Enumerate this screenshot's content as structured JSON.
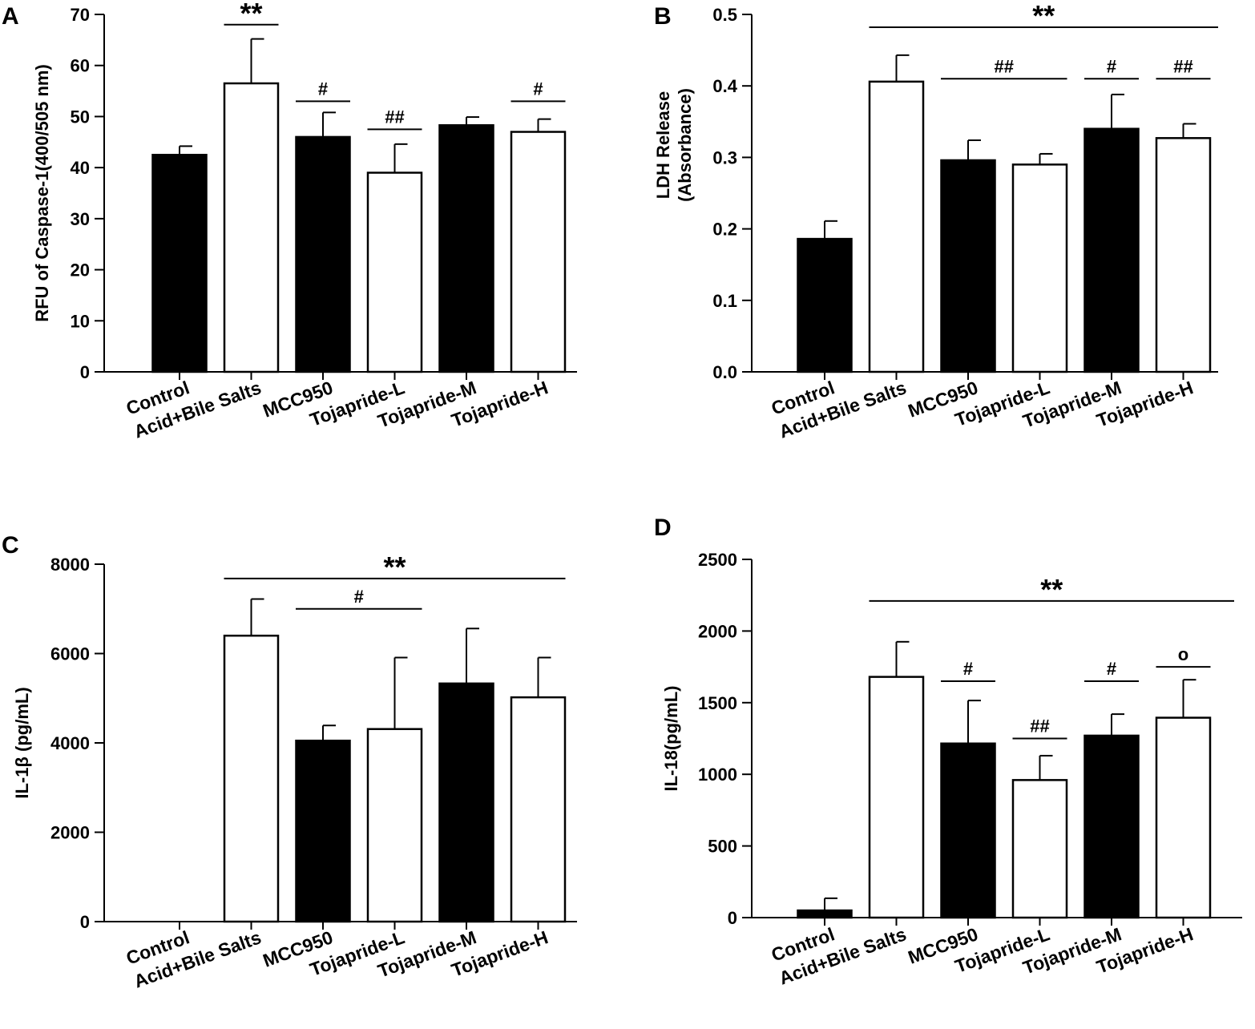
{
  "chart_data": [
    {
      "panel_label": "A",
      "type": "bar",
      "categories": [
        "Control",
        "Acid+Bile Salts",
        "MCC950",
        "Tojapride-L",
        "Tojapride-M",
        "Tojapride-H"
      ],
      "values": [
        42.5,
        56.5,
        46,
        39,
        48.3,
        47
      ],
      "errors": [
        1.7,
        8.7,
        4.8,
        5.6,
        1.6,
        2.5
      ],
      "fills": [
        "#000000",
        "#ffffff",
        "#000000",
        "#ffffff",
        "#000000",
        "#ffffff"
      ],
      "ylabel": "RFU of Caspase-1(400/505 nm)",
      "ylim": [
        0,
        70
      ],
      "yticks": [
        0,
        10,
        20,
        30,
        40,
        50,
        60,
        70
      ],
      "yticklabels": [
        "0",
        "10",
        "20",
        "30",
        "40",
        "50",
        "60",
        "70"
      ],
      "significance": [
        {
          "text": "**",
          "from": 1,
          "to": 1,
          "level": 68
        },
        {
          "text": "#",
          "from": 2,
          "to": 2,
          "level": 53
        },
        {
          "text": "##",
          "from": 3,
          "to": 3,
          "level": 47.5
        },
        {
          "text": "#",
          "from": 5,
          "to": 5,
          "level": 53
        }
      ]
    },
    {
      "panel_label": "B",
      "type": "bar",
      "categories": [
        "Control",
        "Acid+Bile Salts",
        "MCC950",
        "Tojapride-L",
        "Tojapride-M",
        "Tojapride-H"
      ],
      "values": [
        0.186,
        0.406,
        0.296,
        0.29,
        0.34,
        0.327
      ],
      "errors": [
        0.025,
        0.037,
        0.028,
        0.015,
        0.048,
        0.02
      ],
      "fills": [
        "#000000",
        "#ffffff",
        "#000000",
        "#ffffff",
        "#000000",
        "#ffffff"
      ],
      "ylabel": "LDH Release (Absorbance)",
      "ylabel_lines": [
        "LDH Release",
        "(Absorbance)"
      ],
      "ylim": [
        0,
        0.5
      ],
      "yticks": [
        0,
        0.1,
        0.2,
        0.3,
        0.4,
        0.5
      ],
      "yticklabels": [
        "0.0",
        "0.1",
        "0.2",
        "0.3",
        "0.4",
        "0.5"
      ],
      "significance": [
        {
          "text": "**",
          "from": 1,
          "to": 6,
          "level": 0.482
        },
        {
          "text": "##",
          "from": 2,
          "to": 3,
          "level": 0.41
        },
        {
          "text": "#",
          "from": 4,
          "to": 4,
          "level": 0.41
        },
        {
          "text": "##",
          "from": 5,
          "to": 5,
          "level": 0.41
        }
      ]
    },
    {
      "panel_label": "C",
      "type": "bar",
      "categories": [
        "Control",
        "Acid+Bile Salts",
        "MCC950",
        "Tojapride-L",
        "Tojapride-M",
        "Tojapride-H"
      ],
      "values": [
        0,
        6400,
        4050,
        4310,
        5330,
        5020
      ],
      "errors": [
        0,
        820,
        340,
        1600,
        1230,
        890
      ],
      "fills": [
        "#000000",
        "#ffffff",
        "#000000",
        "#ffffff",
        "#000000",
        "#ffffff"
      ],
      "ylabel": "IL-1β (pg/mL)",
      "ylim": [
        0,
        8000
      ],
      "yticks": [
        0,
        2000,
        4000,
        6000,
        8000
      ],
      "yticklabels": [
        "0",
        "2000",
        "4000",
        "6000",
        "8000"
      ],
      "significance": [
        {
          "text": "**",
          "from": 1,
          "to": 5,
          "level": 7680
        },
        {
          "text": "#",
          "from": 2,
          "to": 3,
          "level": 7000
        }
      ]
    },
    {
      "panel_label": "D",
      "type": "bar",
      "categories": [
        "Control",
        "Acid+Bile Salts",
        "MCC950",
        "Tojapride-L",
        "Tojapride-M",
        "Tojapride-H"
      ],
      "values": [
        50,
        1680,
        1215,
        960,
        1270,
        1395
      ],
      "errors": [
        85,
        245,
        300,
        170,
        150,
        265
      ],
      "fills": [
        "#000000",
        "#ffffff",
        "#000000",
        "#ffffff",
        "#000000",
        "#ffffff"
      ],
      "ylabel": "IL-18(pg/mL)",
      "ylim": [
        0,
        2500
      ],
      "yticks": [
        0,
        500,
        1000,
        1500,
        2000,
        2500
      ],
      "yticklabels": [
        "0",
        "500",
        "1000",
        "1500",
        "2000",
        "2500"
      ],
      "significance": [
        {
          "text": "**",
          "from": 1,
          "to": 6,
          "level": 2210
        },
        {
          "text": "#",
          "from": 2,
          "to": 2,
          "level": 1650
        },
        {
          "text": "##",
          "from": 3,
          "to": 3,
          "level": 1250
        },
        {
          "text": "#",
          "from": 4,
          "to": 4,
          "level": 1650
        },
        {
          "text": "o",
          "from": 5,
          "to": 5,
          "level": 1750
        }
      ]
    }
  ]
}
